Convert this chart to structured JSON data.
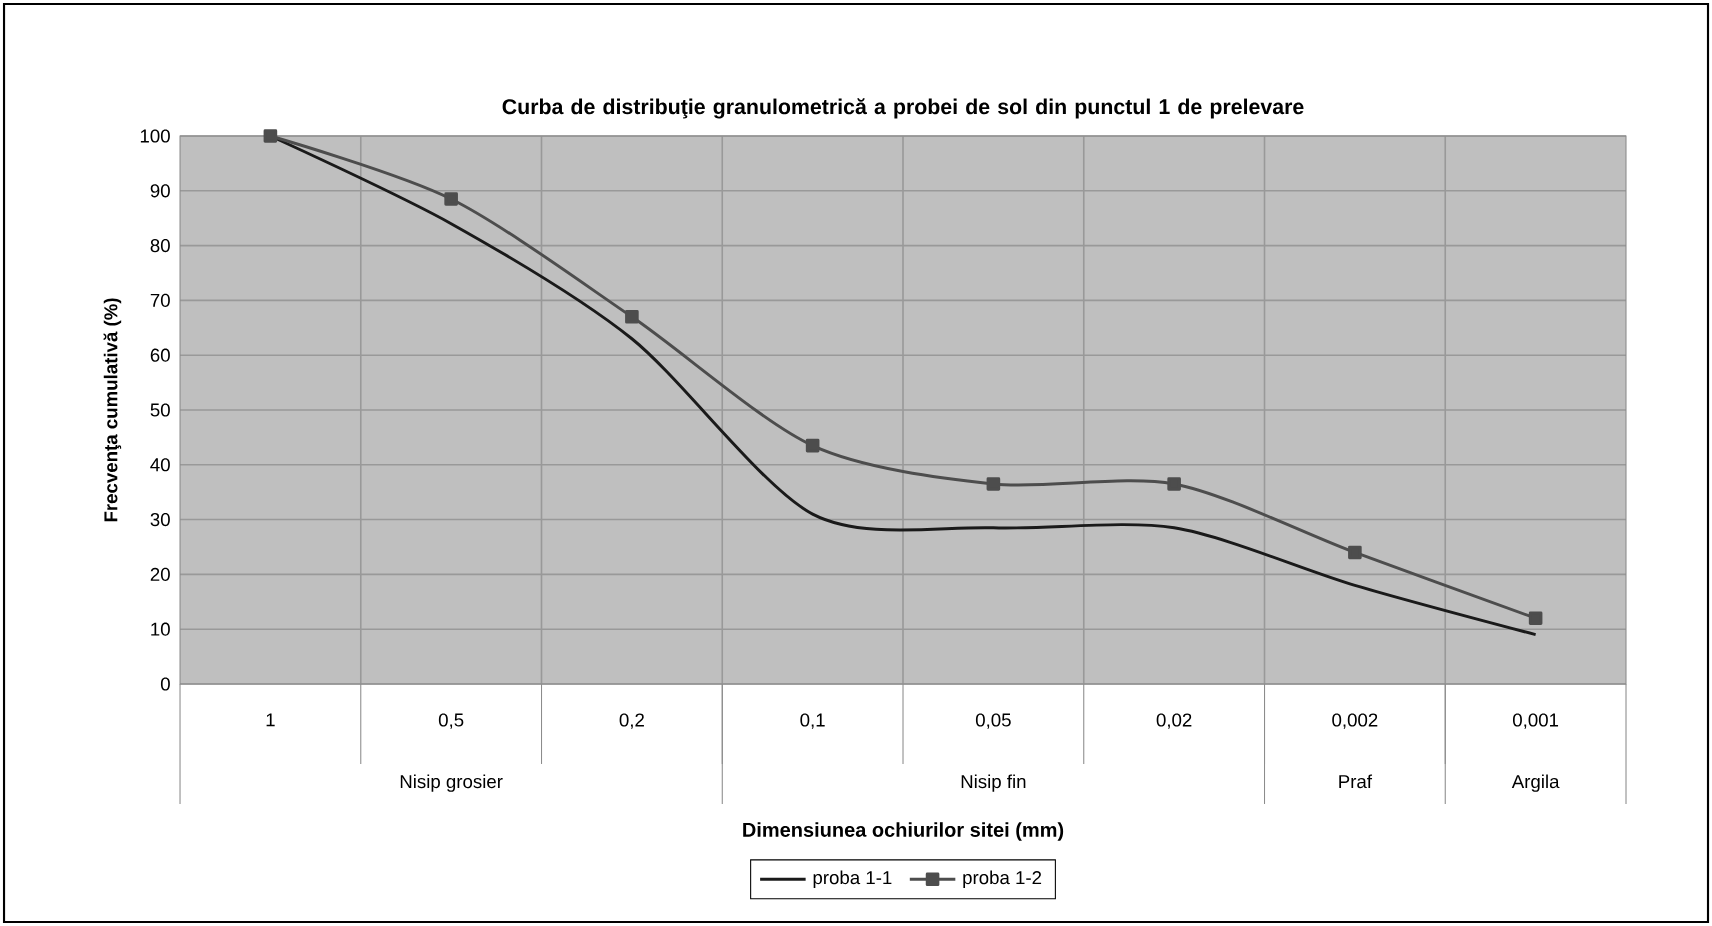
{
  "chart_data": {
    "type": "line",
    "title": "Curba de distribuţie granulometrică a probei de sol din punctul 1 de prelevare",
    "xlabel": "Dimensiunea ochiurilor sitei (mm)",
    "ylabel": "Frecvenţa cumulativă (%)",
    "categories": [
      "1",
      "0,5",
      "0,2",
      "0,1",
      "0,05",
      "0,02",
      "0,002",
      "0,001"
    ],
    "series": [
      {
        "name": "proba 1-1",
        "color": "#1a1a1a",
        "marker": "none",
        "values": [
          100,
          84,
          63,
          31,
          28.5,
          28.5,
          18,
          9
        ]
      },
      {
        "name": "proba 1-2",
        "color": "#4d4d4d",
        "marker": "square",
        "values": [
          100,
          88.5,
          67,
          43.5,
          36.5,
          36.5,
          24,
          12
        ]
      }
    ],
    "annotations": [
      "Nisip grosier",
      "Nisip fin",
      "Praf",
      "Argila"
    ],
    "ylim": [
      0,
      100
    ],
    "yticks": [
      0,
      10,
      20,
      30,
      40,
      50,
      60,
      70,
      80,
      90,
      100
    ],
    "grid": true,
    "legend": "bottom",
    "line_style": "solid"
  }
}
